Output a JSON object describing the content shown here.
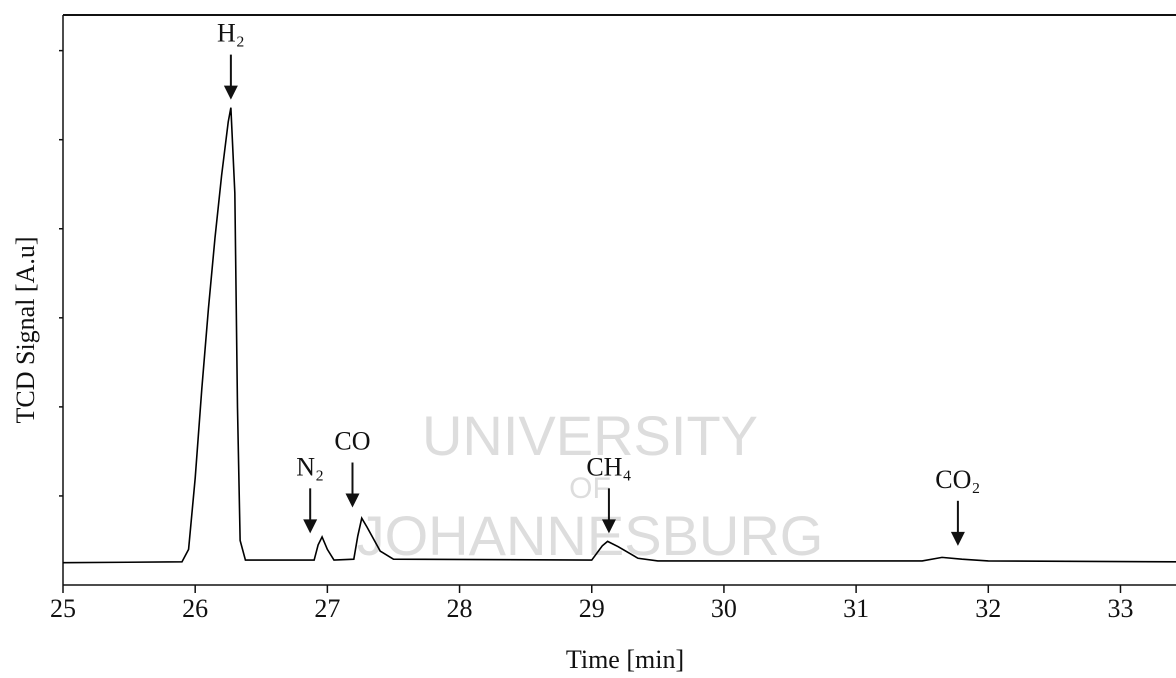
{
  "chart_data": {
    "type": "line",
    "x_label": "Time [min]",
    "y_label": "TCD Signal [A.u]",
    "x": [
      25.0,
      25.9,
      25.95,
      26.0,
      26.05,
      26.1,
      26.15,
      26.2,
      26.25,
      26.27,
      26.3,
      26.32,
      26.34,
      26.38,
      26.9,
      26.93,
      26.96,
      27.0,
      27.05,
      27.2,
      27.23,
      27.26,
      27.3,
      27.4,
      27.5,
      29.0,
      29.08,
      29.12,
      29.2,
      29.35,
      29.5,
      31.5,
      31.65,
      31.8,
      32.0,
      33.42
    ],
    "values": [
      0.25,
      0.26,
      0.4,
      1.2,
      2.2,
      3.1,
      3.9,
      4.6,
      5.2,
      5.36,
      4.4,
      2.0,
      0.5,
      0.28,
      0.28,
      0.45,
      0.54,
      0.4,
      0.28,
      0.29,
      0.55,
      0.75,
      0.65,
      0.38,
      0.29,
      0.28,
      0.44,
      0.49,
      0.43,
      0.3,
      0.27,
      0.27,
      0.31,
      0.29,
      0.27,
      0.26
    ],
    "color": "#000000",
    "xlim": [
      25,
      33.42
    ],
    "xticks": [
      25,
      26,
      27,
      28,
      29,
      30,
      31,
      32,
      33
    ],
    "ylim": [
      0,
      6.4
    ],
    "yticks": [
      1,
      2,
      3,
      4,
      5,
      6
    ],
    "annotations": [
      {
        "text": "H₂",
        "x": 26.27,
        "y": 5.45
      },
      {
        "text": "N₂",
        "x": 26.87,
        "y": 0.58
      },
      {
        "text": "CO",
        "x": 27.19,
        "y": 0.87
      },
      {
        "text": "CH₄",
        "x": 29.13,
        "y": 0.58
      },
      {
        "text": "CO₂",
        "x": 31.77,
        "y": 0.44
      }
    ],
    "watermark": [
      "UNIVERSITY",
      "OF",
      "JOHANNESBURG"
    ]
  }
}
